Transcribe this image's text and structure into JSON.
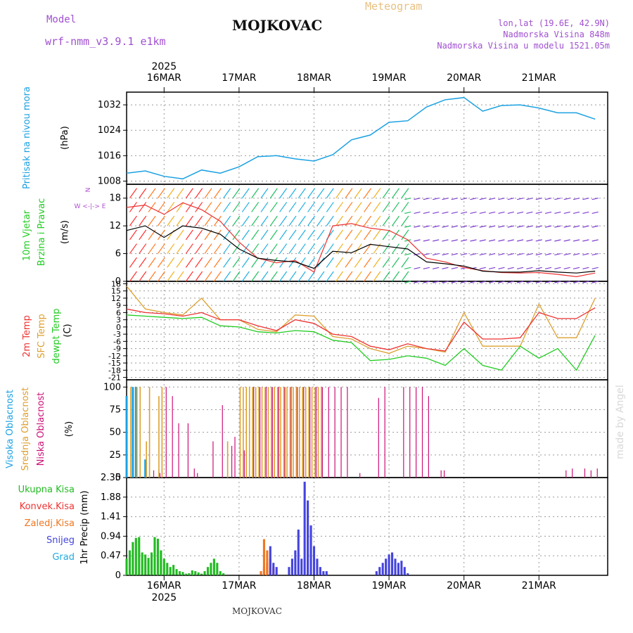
{
  "header": {
    "model_label": "Model",
    "model_name": "wrf-nmm_v3.9.1  e1km",
    "station": "MOJKOVAC",
    "product": "Meteogram",
    "lonlat": "lon,lat (19.6E, 42.9N)",
    "altitude": "Nadmorska Visina 848m",
    "model_altitude": "Nadmorska Visina u modelu 1521.05m",
    "footer_station": "MOJKOVAC",
    "watermark": "made by Angel"
  },
  "time_axis": {
    "year": "2025",
    "day_labels": [
      "16MAR",
      "17MAR",
      "18MAR",
      "19MAR",
      "20MAR",
      "21MAR"
    ]
  },
  "colors": {
    "pressure": "#1ba1e2",
    "temp2m": "#ee3333",
    "sfc_temp": "#dda030",
    "dewpoint": "#22cc22",
    "wind_speed": "#000000",
    "gust": "#ee3333",
    "cloud_high": "#1ba1e2",
    "cloud_mid": "#dda030",
    "cloud_low": "#cc1177",
    "precip_total": "#22bb22",
    "precip_conv": "#ee3333",
    "precip_freezing": "#ee7722",
    "snow": "#4444dd",
    "hail": "#22aadd"
  },
  "chart_data": [
    {
      "type": "line",
      "name": "pressure",
      "ylabel": "Pritisak na nivou mora",
      "unit": "(hPa)",
      "ylim": [
        1007,
        1036
      ],
      "yticks": [
        "1032",
        "1024",
        "1016",
        "1008"
      ],
      "yticks_values": [
        1032,
        1024,
        1016,
        1008
      ],
      "x_hours": [
        0,
        6,
        12,
        18,
        24,
        30,
        36,
        42,
        48,
        54,
        60,
        66,
        72,
        78,
        84,
        90,
        96,
        102,
        108,
        114,
        120,
        126,
        132,
        138,
        144,
        150
      ],
      "series": [
        {
          "values": [
            1010.5,
            1011.2,
            1009.5,
            1008.7,
            1011.5,
            1010.5,
            1012.5,
            1015.7,
            1016.0,
            1015.0,
            1014.3,
            1016.3,
            1021.0,
            1022.5,
            1026.5,
            1027.0,
            1031.3,
            1033.6,
            1034.3,
            1030.0,
            1031.8,
            1032.0,
            1031.0,
            1029.5,
            1029.5,
            1027.5
          ]
        }
      ]
    },
    {
      "type": "line",
      "name": "wind",
      "ylabel": "10m Vjetar",
      "ylabel2": "Brzina i Pravac",
      "unit": "(m/s)",
      "ylim": [
        0,
        21
      ],
      "yticks": [
        "18",
        "12",
        "6",
        "0"
      ],
      "yticks_values": [
        18,
        12,
        6,
        0
      ],
      "x_hours": [
        0,
        6,
        12,
        18,
        24,
        30,
        36,
        42,
        48,
        54,
        60,
        66,
        72,
        78,
        84,
        90,
        96,
        102,
        108,
        114,
        120,
        126,
        132,
        138,
        144,
        150
      ],
      "series": [
        {
          "values": [
            11.0,
            12.0,
            9.5,
            12.0,
            11.5,
            10.2,
            7.0,
            5.0,
            4.5,
            4.2,
            2.8,
            6.5,
            6.2,
            8.0,
            7.5,
            7.0,
            4.2,
            3.8,
            3.3,
            2.2,
            2.0,
            2.0,
            2.3,
            2.0,
            1.8,
            2.2
          ]
        },
        {
          "values": [
            16.0,
            16.5,
            14.5,
            17.0,
            15.5,
            13.0,
            8.5,
            5.0,
            4.0,
            4.5,
            2.0,
            12.0,
            12.5,
            11.5,
            11.0,
            9.0,
            5.0,
            4.2,
            3.0,
            2.3,
            1.9,
            1.8,
            1.9,
            1.5,
            1.0,
            1.8
          ]
        }
      ]
    },
    {
      "type": "line",
      "name": "temperature",
      "ylabel": "2m Temp",
      "ylabel2": "SFC Temp",
      "ylabel3": "dewpt Temp",
      "unit": "(C)",
      "ylim": [
        -22,
        19
      ],
      "yticks": [
        "18",
        "15",
        "12",
        "9",
        "6",
        "3",
        "0",
        "-3",
        "-6",
        "-9",
        "-12",
        "-15",
        "-18",
        "-21"
      ],
      "yticks_values": [
        18,
        15,
        12,
        9,
        6,
        3,
        0,
        -3,
        -6,
        -9,
        -12,
        -15,
        -18,
        -21
      ],
      "x_hours": [
        0,
        6,
        12,
        18,
        24,
        30,
        36,
        42,
        48,
        54,
        60,
        66,
        72,
        78,
        84,
        90,
        96,
        102,
        108,
        114,
        120,
        126,
        132,
        138,
        144,
        150
      ],
      "series": [
        {
          "values": [
            7.5,
            6.0,
            5.5,
            4.5,
            6.0,
            3.0,
            3.0,
            0.5,
            -1.5,
            3.0,
            1.5,
            -3.0,
            -4.0,
            -8.0,
            -9.5,
            -7.0,
            -9.0,
            -10.0,
            2.0,
            -5.0,
            -5.0,
            -4.5,
            6.0,
            3.5,
            3.5,
            8.0
          ]
        },
        {
          "values": [
            17.0,
            7.5,
            6.0,
            5.0,
            12.0,
            3.0,
            3.0,
            -1.0,
            -2.0,
            5.0,
            4.5,
            -4.0,
            -5.0,
            -9.0,
            -11.0,
            -8.0,
            -9.0,
            -10.5,
            6.0,
            -8.0,
            -8.0,
            -8.0,
            9.5,
            -4.5,
            -4.5,
            12.0
          ]
        },
        {
          "values": [
            5.0,
            4.5,
            4.0,
            3.5,
            4.0,
            0.5,
            0.0,
            -2.0,
            -2.5,
            -1.5,
            -2.0,
            -5.5,
            -6.5,
            -14.0,
            -13.5,
            -12.0,
            -13.0,
            -16.0,
            -9.0,
            -16.0,
            -18.0,
            -8.0,
            -13.0,
            -9.0,
            -18.0,
            -3.5
          ]
        }
      ]
    },
    {
      "type": "bar",
      "name": "cloudiness",
      "ylabel": "Visoka Oblacnost",
      "ylabel2": "Srednja Oblacnost",
      "ylabel3": "Niska Oblacnost",
      "unit": "(%)",
      "ylim": [
        0,
        108
      ],
      "yticks": [
        "100",
        "75",
        "50",
        "25",
        "0"
      ],
      "yticks_values": [
        100,
        75,
        50,
        25,
        0
      ],
      "series": [
        {
          "name": "Visoka Oblacnost",
          "x_hours": [
            0,
            2,
            3,
            6
          ],
          "values": [
            90,
            100,
            100,
            20
          ]
        },
        {
          "name": "Srednja Oblacnost",
          "x_hours": [
            1,
            3,
            4,
            6,
            7,
            10,
            11,
            32,
            36,
            37,
            38,
            39,
            40,
            41,
            42,
            43,
            44,
            45,
            46,
            47,
            48,
            49,
            50,
            51,
            52,
            53,
            54,
            55,
            56,
            57,
            58,
            59,
            60,
            61,
            62
          ],
          "values": [
            100,
            100,
            100,
            40,
            100,
            90,
            100,
            40,
            100,
            100,
            100,
            100,
            100,
            100,
            100,
            100,
            100,
            100,
            100,
            100,
            100,
            100,
            100,
            100,
            100,
            100,
            100,
            100,
            100,
            100,
            100,
            100,
            100,
            100,
            100
          ]
        },
        {
          "name": "Niska Oblacnost",
          "x_hours": [
            8,
            10,
            12,
            14,
            16,
            19,
            21,
            22,
            27,
            30,
            33,
            34,
            37,
            40,
            42,
            44,
            46,
            48,
            50,
            52,
            54,
            56,
            58,
            60,
            62,
            64,
            66,
            68,
            70,
            74,
            80,
            82,
            88,
            90,
            92,
            94,
            96,
            100,
            101,
            140,
            142,
            146,
            148,
            150
          ],
          "values": [
            8,
            5,
            100,
            90,
            60,
            60,
            10,
            5,
            40,
            80,
            35,
            45,
            30,
            100,
            100,
            100,
            100,
            100,
            100,
            100,
            100,
            100,
            100,
            100,
            100,
            100,
            100,
            100,
            100,
            5,
            88,
            100,
            100,
            100,
            100,
            100,
            90,
            8,
            8,
            8,
            10,
            10,
            8,
            10
          ]
        }
      ]
    },
    {
      "type": "bar",
      "name": "precipitation",
      "ylabel": "1hr Precip (mm)",
      "ylim": [
        0,
        2.35
      ],
      "yticks": [
        "2.35",
        "1.88",
        "1.41",
        "0.94",
        "0.47",
        "0"
      ],
      "yticks_values": [
        2.35,
        1.88,
        1.41,
        0.94,
        0.47,
        0
      ],
      "series": [
        {
          "name": "Ukupna Kisa",
          "x_hours": [
            0,
            1,
            2,
            3,
            4,
            5,
            6,
            7,
            8,
            9,
            10,
            11,
            12,
            13,
            14,
            15,
            16,
            17,
            18,
            19,
            20,
            21,
            22,
            23,
            24,
            25,
            26,
            27,
            28,
            29,
            30,
            31
          ],
          "values": [
            0.4,
            0.6,
            0.8,
            0.9,
            0.92,
            0.55,
            0.5,
            0.42,
            0.55,
            0.92,
            0.88,
            0.6,
            0.4,
            0.3,
            0.2,
            0.25,
            0.15,
            0.1,
            0.08,
            0.04,
            0.05,
            0.12,
            0.1,
            0.07,
            0.04,
            0.1,
            0.2,
            0.3,
            0.4,
            0.3,
            0.1,
            0.05
          ]
        },
        {
          "name": "Konvek.Kisa",
          "x_hours": [
            44,
            45,
            46,
            47
          ],
          "values": [
            0.2,
            0.3,
            0.4,
            0.2
          ]
        },
        {
          "name": "Zaledj.Kisa",
          "x_hours": [
            43,
            44,
            45,
            46
          ],
          "values": [
            0.1,
            0.87,
            0.6,
            0.2
          ]
        },
        {
          "name": "Snijeg",
          "x_hours": [
            46,
            47,
            48,
            52,
            53,
            54,
            55,
            56,
            57,
            58,
            59,
            60,
            61,
            62,
            63,
            64,
            80,
            81,
            82,
            83,
            84,
            85,
            86,
            87,
            88,
            89,
            90
          ],
          "values": [
            0.7,
            0.3,
            0.2,
            0.2,
            0.4,
            0.6,
            1.1,
            0.4,
            2.25,
            1.8,
            1.2,
            0.7,
            0.4,
            0.2,
            0.1,
            0.1,
            0.1,
            0.2,
            0.3,
            0.4,
            0.5,
            0.55,
            0.4,
            0.3,
            0.35,
            0.2,
            0.05
          ]
        },
        {
          "name": "Grad",
          "x_hours": [],
          "values": []
        }
      ]
    }
  ],
  "precip_legend": [
    "Ukupna Kisa",
    "Konvek.Kisa",
    "Zaledj.Kisa",
    "Snijeg",
    "Grad"
  ]
}
